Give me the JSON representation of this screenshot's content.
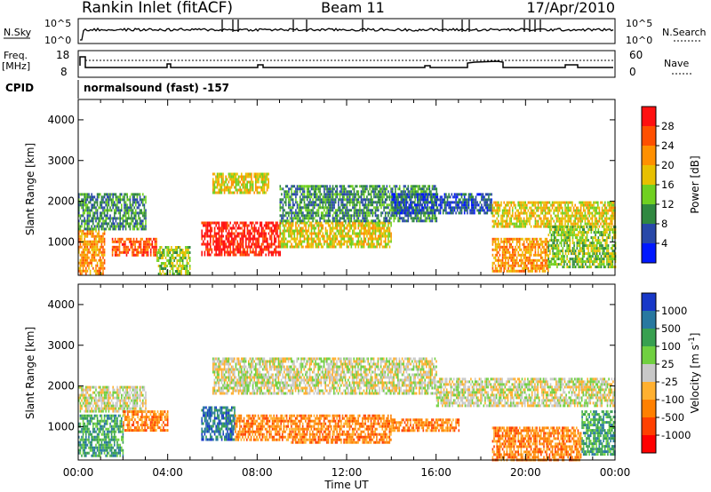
{
  "header": {
    "station": "Rankin Inlet (fitACF)",
    "beam": "Beam 11",
    "date": "17/Apr/2010"
  },
  "nsky_panel": {
    "left_label": "N.Sky",
    "right_label": "N.Search",
    "left_ticks": [
      "10^5",
      "10^0"
    ],
    "right_ticks": [
      "10^5",
      "10^0"
    ]
  },
  "freq_panel": {
    "left_label": "Freq.",
    "left_unit": "[MHz]",
    "left_ticks": [
      "18",
      "8"
    ],
    "right_label": "Nave",
    "right_ticks": [
      "60",
      "0"
    ]
  },
  "cpid_panel": {
    "label": "CPID",
    "mode": "normalsound (fast) -157"
  },
  "time_axis": {
    "label": "Time UT",
    "ticks": [
      "00:00",
      "04:00",
      "08:00",
      "12:00",
      "16:00",
      "20:00",
      "00:00"
    ]
  },
  "chart_data": [
    {
      "type": "heatmap",
      "name": "power",
      "ylabel": "Slant Range [km]",
      "yticks": [
        1000,
        2000,
        3000,
        4000
      ],
      "ylim": [
        180,
        4500
      ],
      "xlim_hours": [
        0,
        24
      ],
      "colorbar_label": "Power [dB]",
      "colorbar_ticks": [
        "28",
        "24",
        "20",
        "16",
        "12",
        "8",
        "4"
      ],
      "colorbar_colors": [
        "#ff1010",
        "#ff5000",
        "#ff9000",
        "#e8c000",
        "#70d020",
        "#308840",
        "#2848a8",
        "#0018ff"
      ],
      "regions": [
        {
          "t0": 0.0,
          "t1": 1.2,
          "r0": 200,
          "r1": 1300,
          "level": 5
        },
        {
          "t0": 0.0,
          "t1": 3.0,
          "r0": 1300,
          "r1": 2200,
          "level": 2
        },
        {
          "t0": 1.5,
          "t1": 3.5,
          "r0": 700,
          "r1": 1100,
          "level": 6
        },
        {
          "t0": 3.5,
          "t1": 5.0,
          "r0": 200,
          "r1": 900,
          "level": 3
        },
        {
          "t0": 5.5,
          "t1": 9.0,
          "r0": 700,
          "r1": 1500,
          "level": 7
        },
        {
          "t0": 6.0,
          "t1": 8.5,
          "r0": 2200,
          "r1": 2700,
          "level": 4
        },
        {
          "t0": 9.0,
          "t1": 14.0,
          "r0": 900,
          "r1": 1500,
          "level": 4
        },
        {
          "t0": 9.0,
          "t1": 16.0,
          "r0": 1500,
          "r1": 2400,
          "level": 2
        },
        {
          "t0": 14.0,
          "t1": 18.5,
          "r0": 1700,
          "r1": 2200,
          "level": 1
        },
        {
          "t0": 18.5,
          "t1": 21.0,
          "r0": 300,
          "r1": 1100,
          "level": 5
        },
        {
          "t0": 18.5,
          "t1": 24.0,
          "r0": 1400,
          "r1": 2000,
          "level": 4
        },
        {
          "t0": 21.0,
          "t1": 24.0,
          "r0": 400,
          "r1": 1400,
          "level": 3
        }
      ]
    },
    {
      "type": "heatmap",
      "name": "velocity",
      "ylabel": "Slant Range [km]",
      "yticks": [
        1000,
        2000,
        3000,
        4000
      ],
      "ylim": [
        180,
        4500
      ],
      "xlim_hours": [
        0,
        24
      ],
      "colorbar_label": "Velocity [m s^-1]",
      "colorbar_ticks": [
        "1000",
        "500",
        "100",
        "25",
        "-25",
        "-100",
        "-500",
        "-1000"
      ],
      "colorbar_colors": [
        "#1838c8",
        "#2878a0",
        "#38a050",
        "#70d040",
        "#c8c8c8",
        "#ffb030",
        "#ff8000",
        "#ff4000",
        "#ff0000"
      ],
      "regions": [
        {
          "t0": 0.0,
          "t1": 2.0,
          "r0": 300,
          "r1": 1300,
          "level": 2
        },
        {
          "t0": 0.0,
          "t1": 3.0,
          "r0": 1400,
          "r1": 2000,
          "level": 4
        },
        {
          "t0": 2.0,
          "t1": 4.0,
          "r0": 900,
          "r1": 1400,
          "level": 6
        },
        {
          "t0": 5.5,
          "t1": 7.0,
          "r0": 700,
          "r1": 1500,
          "level": 1
        },
        {
          "t0": 7.0,
          "t1": 9.5,
          "r0": 700,
          "r1": 1300,
          "level": 6
        },
        {
          "t0": 6.0,
          "t1": 16.0,
          "r0": 1800,
          "r1": 2700,
          "level": 4
        },
        {
          "t0": 9.5,
          "t1": 14.0,
          "r0": 600,
          "r1": 1300,
          "level": 6
        },
        {
          "t0": 14.0,
          "t1": 17.0,
          "r0": 900,
          "r1": 1200,
          "level": 6
        },
        {
          "t0": 16.0,
          "t1": 24.0,
          "r0": 1500,
          "r1": 2200,
          "level": 4
        },
        {
          "t0": 18.5,
          "t1": 22.5,
          "r0": 200,
          "r1": 1000,
          "level": 6
        },
        {
          "t0": 22.5,
          "t1": 24.0,
          "r0": 300,
          "r1": 1400,
          "level": 2
        }
      ]
    }
  ]
}
